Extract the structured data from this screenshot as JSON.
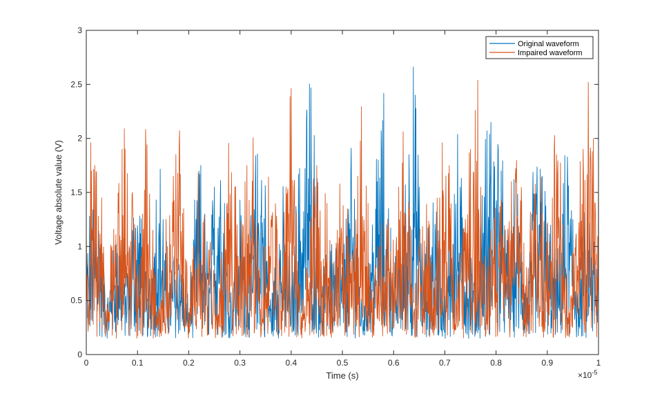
{
  "chart_data": {
    "type": "line",
    "title": "",
    "xlabel": "Time (s)",
    "ylabel": "Voltage absolute value (V)",
    "xlim": [
      0,
      1
    ],
    "ylim": [
      0,
      3
    ],
    "x_exponent_label": "×10",
    "x_exponent_power": "-5",
    "xticks": [
      0,
      0.1,
      0.2,
      0.3,
      0.4,
      0.5,
      0.6,
      0.7,
      0.8,
      0.9,
      1
    ],
    "xtick_labels": [
      "0",
      "0.1",
      "0.2",
      "0.3",
      "0.4",
      "0.5",
      "0.6",
      "0.7",
      "0.8",
      "0.9",
      "1"
    ],
    "yticks": [
      0,
      0.5,
      1,
      1.5,
      2,
      2.5,
      3
    ],
    "ytick_labels": [
      "0",
      "0.5",
      "1",
      "1.5",
      "2",
      "2.5",
      "3"
    ],
    "grid": false,
    "legend_position": "top-right",
    "series": [
      {
        "name": "Original waveform",
        "color": "#0072BD",
        "x": [
          0.0,
          0.02,
          0.04,
          0.06,
          0.08,
          0.1,
          0.12,
          0.14,
          0.16,
          0.18,
          0.2,
          0.22,
          0.24,
          0.26,
          0.28,
          0.3,
          0.32,
          0.34,
          0.36,
          0.38,
          0.4,
          0.42,
          0.44,
          0.46,
          0.48,
          0.5,
          0.52,
          0.54,
          0.56,
          0.58,
          0.6,
          0.62,
          0.64,
          0.66,
          0.68,
          0.7,
          0.72,
          0.74,
          0.76,
          0.78,
          0.8,
          0.82,
          0.84,
          0.86,
          0.88,
          0.9,
          0.92,
          0.94,
          0.96,
          0.98,
          1.0
        ],
        "y": [
          0.9,
          1.8,
          0.3,
          1.2,
          0.7,
          1.6,
          0.4,
          1.9,
          0.6,
          1.1,
          0.3,
          1.7,
          0.8,
          2.3,
          0.5,
          1.3,
          0.9,
          2.3,
          0.4,
          1.4,
          0.7,
          1.9,
          2.5,
          0.5,
          1.2,
          0.8,
          1.8,
          0.3,
          1.5,
          2.1,
          0.6,
          1.3,
          2.4,
          0.7,
          1.6,
          0.4,
          2.0,
          1.1,
          0.6,
          1.8,
          2.5,
          0.9,
          1.4,
          0.5,
          2.1,
          1.2,
          0.7,
          1.9,
          0.6,
          1.3,
          0.7
        ]
      },
      {
        "name": "Impaired waveform",
        "color": "#D95319",
        "x": [
          0.0,
          0.02,
          0.04,
          0.06,
          0.08,
          0.1,
          0.12,
          0.14,
          0.16,
          0.18,
          0.2,
          0.22,
          0.24,
          0.26,
          0.28,
          0.3,
          0.32,
          0.34,
          0.36,
          0.38,
          0.4,
          0.42,
          0.44,
          0.46,
          0.48,
          0.5,
          0.52,
          0.54,
          0.56,
          0.58,
          0.6,
          0.62,
          0.64,
          0.66,
          0.68,
          0.7,
          0.72,
          0.74,
          0.76,
          0.78,
          0.8,
          0.82,
          0.84,
          0.86,
          0.88,
          0.9,
          0.92,
          0.94,
          0.96,
          0.98,
          1.0
        ],
        "y": [
          1.0,
          2.4,
          0.5,
          1.5,
          2.3,
          0.7,
          1.9,
          0.4,
          1.2,
          2.1,
          0.6,
          1.4,
          1.0,
          0.5,
          2.0,
          1.1,
          2.1,
          0.4,
          1.6,
          0.8,
          2.3,
          0.3,
          1.3,
          2.2,
          0.6,
          1.7,
          1.0,
          2.3,
          0.5,
          1.5,
          0.9,
          2.2,
          0.4,
          1.6,
          0.8,
          2.1,
          0.6,
          1.2,
          2.6,
          0.5,
          1.8,
          1.0,
          2.2,
          0.6,
          1.7,
          0.9,
          2.0,
          0.4,
          1.5,
          2.3,
          1.7
        ]
      }
    ]
  }
}
